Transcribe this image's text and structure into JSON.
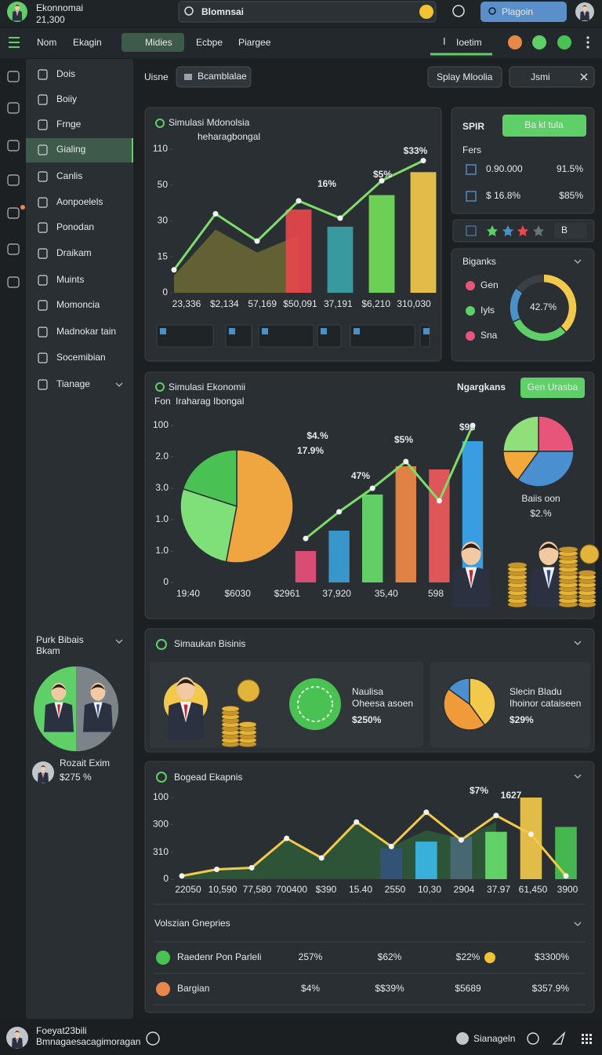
{
  "header": {
    "app_name": "Ekonnomai",
    "balance": "21,300",
    "search": "Blomnsai",
    "button": "Plagoin"
  },
  "nav": {
    "items": [
      "Nom",
      "Ekagin",
      "Midies",
      "Ecbpe",
      "Piargee"
    ],
    "tab": "Ioetim"
  },
  "sidebar": {
    "menu": [
      "Dois",
      "Boiiy",
      "Frnge",
      "Gialing",
      "Canlis",
      "Aonpoelels",
      "Ponodan",
      "Draikam",
      "Muints",
      "Momoncia",
      "Madnokar tain",
      "Socemibian",
      "Tianage"
    ],
    "promo": {
      "title": "Purk Bibais",
      "subtitle": "Bkam",
      "user": "Rozait Exim",
      "value": "$275 %"
    }
  },
  "toolbar": {
    "label": "Uisne",
    "chip": "Bcamblalae",
    "button": "Splay Mloolia",
    "search": "Jsmi"
  },
  "panel1": {
    "title": "Simulasi Mdonolsia",
    "subtitle": "heharagbongal",
    "chart": {
      "type": "combo",
      "categories": [
        "23,336",
        "$2,134",
        "57,169",
        "$50,091",
        "37,191",
        "$6,210",
        "310,030"
      ],
      "ylim": [
        0,
        100
      ],
      "yticks": [
        0,
        {
          "value": 25,
          "label": "15"
        },
        {
          "value": 50,
          "label": "30"
        },
        {
          "value": 75,
          "label": "50"
        },
        {
          "value": 100,
          "label": "110"
        }
      ],
      "series": [
        {
          "kind": "area",
          "color": "#6b6a34",
          "values": [
            12,
            44,
            28,
            40,
            null,
            null,
            null
          ]
        },
        {
          "kind": "bar",
          "colors": [
            null,
            null,
            null,
            "#e8474b",
            "#3aa4a8",
            "#72de5a",
            "#f2c94a"
          ],
          "values": [
            null,
            null,
            null,
            58,
            46,
            68,
            84
          ]
        },
        {
          "kind": "line",
          "color": "#7ddc6a",
          "values": [
            16,
            55,
            36,
            64,
            52,
            78,
            92
          ]
        }
      ],
      "annotations": [
        "16%",
        "$5%",
        "$33%"
      ]
    }
  },
  "spir": {
    "title": "SPIR",
    "button": "Ba kl tula",
    "label": "Fers",
    "rows": [
      [
        "0.90.000",
        "91.5%"
      ],
      [
        "$ 16.8%",
        "$85%"
      ]
    ],
    "rating": "B"
  },
  "biganks": {
    "title": "Biganks",
    "legend": [
      "Gen",
      "Iyls",
      "Sna"
    ],
    "donut": {
      "type": "donut",
      "values": [
        38,
        30,
        17,
        15
      ],
      "colors": [
        "#f2c94a",
        "#5fd068",
        "#4a90c9",
        "#3a4045"
      ],
      "center": "42.7%"
    }
  },
  "panel2": {
    "title": "Simulasi Ekonomii",
    "subtitle_prefix": "Fon",
    "subtitle": "Iraharag Ibongal",
    "side_title": "Ngargkans",
    "button": "Gen Urasba",
    "pie": {
      "type": "pie",
      "values": [
        53,
        27,
        20
      ],
      "colors": [
        "#f0a640",
        "#7fe07a",
        "#49c253"
      ]
    },
    "chart": {
      "type": "combo",
      "categories": [
        "19:40",
        "$6030",
        "$2961",
        "37,920",
        "35,40",
        "598"
      ],
      "ylim": [
        0,
        100
      ],
      "yticks": [
        0,
        {
          "value": 20,
          "label": "1.0"
        },
        {
          "value": 40,
          "label": "1.0"
        },
        {
          "value": 60,
          "label": "3.0"
        },
        {
          "value": 80,
          "label": "2.0"
        },
        100
      ],
      "series": [
        {
          "kind": "bar",
          "colors": [
            "#e8507a",
            "#3aa0d8",
            "#66dd6a",
            "#f08a48",
            "#ee5a5a",
            "#3aa8f0"
          ],
          "values": [
            20,
            33,
            56,
            74,
            72,
            90
          ]
        },
        {
          "kind": "line",
          "color": "#7ddc6a",
          "values": [
            28,
            45,
            60,
            77,
            52,
            100
          ]
        }
      ],
      "annotations": [
        "$4.%",
        "17.9%",
        "47%",
        "$5%",
        "$9$"
      ]
    },
    "mini_pie": {
      "type": "pie",
      "values": [
        25,
        35,
        15,
        25
      ],
      "colors": [
        "#e8557a",
        "#4a8fd0",
        "#f2a83a",
        "#8fe07a"
      ],
      "caption": "Baiis oon",
      "value": "$2.%"
    }
  },
  "panel3": {
    "title": "Simaukan Bisinis",
    "cards": [
      {
        "title": "Naulisa",
        "subtitle": "Oheesa asoen",
        "value": "$250%"
      },
      {
        "title": "Slecin Bladu",
        "subtitle": "Ihoinor cataiseen",
        "value": "$29%"
      }
    ],
    "pie": {
      "type": "pie",
      "values": [
        40,
        45,
        15
      ],
      "colors": [
        "#f2c94a",
        "#f09a3a",
        "#4a8fd0"
      ]
    }
  },
  "panel4": {
    "title": "Bogead Ekapnis",
    "chart": {
      "type": "combo",
      "categories": [
        "22050",
        "10,590",
        "77,580",
        "700400",
        "$390",
        "15.40",
        "2550",
        "10,30",
        "2904",
        "37.97",
        "61,450",
        "3900"
      ],
      "ylim": [
        0,
        100
      ],
      "yticks": [
        0,
        {
          "value": 33,
          "label": "310"
        },
        {
          "value": 67,
          "label": "300"
        },
        100
      ],
      "series": [
        {
          "kind": "area",
          "color": "#2f5a3a",
          "values": [
            4,
            12,
            14,
            50,
            26,
            70,
            40,
            60,
            50,
            70,
            null,
            null
          ]
        },
        {
          "kind": "bar",
          "colors": [
            null,
            null,
            null,
            null,
            null,
            null,
            "#34547a",
            "#3ab8e8",
            "#4a6a78",
            "#66dd6a",
            "#f2c94a",
            "#49c253"
          ],
          "values": [
            null,
            null,
            null,
            null,
            null,
            null,
            38,
            46,
            52,
            58,
            100,
            64
          ]
        },
        {
          "kind": "line",
          "color": "#f2c94a",
          "values": [
            4,
            12,
            14,
            50,
            26,
            70,
            40,
            82,
            48,
            78,
            55,
            4
          ]
        }
      ],
      "annotations": [
        "$7%",
        "1627"
      ]
    },
    "table": {
      "title": "Volszian Gnepries",
      "rows": [
        [
          "Raedenr Pon Parleli",
          "257%",
          "$62%",
          "$22%",
          "$3300%"
        ],
        [
          "Bargian",
          "$4%",
          "$$39%",
          "$5689",
          "$357.9%"
        ]
      ]
    }
  },
  "footer": {
    "name": "Foeyat23bili",
    "subtitle": "Bmnagaesacagimoragan",
    "user": "Sianageln"
  }
}
